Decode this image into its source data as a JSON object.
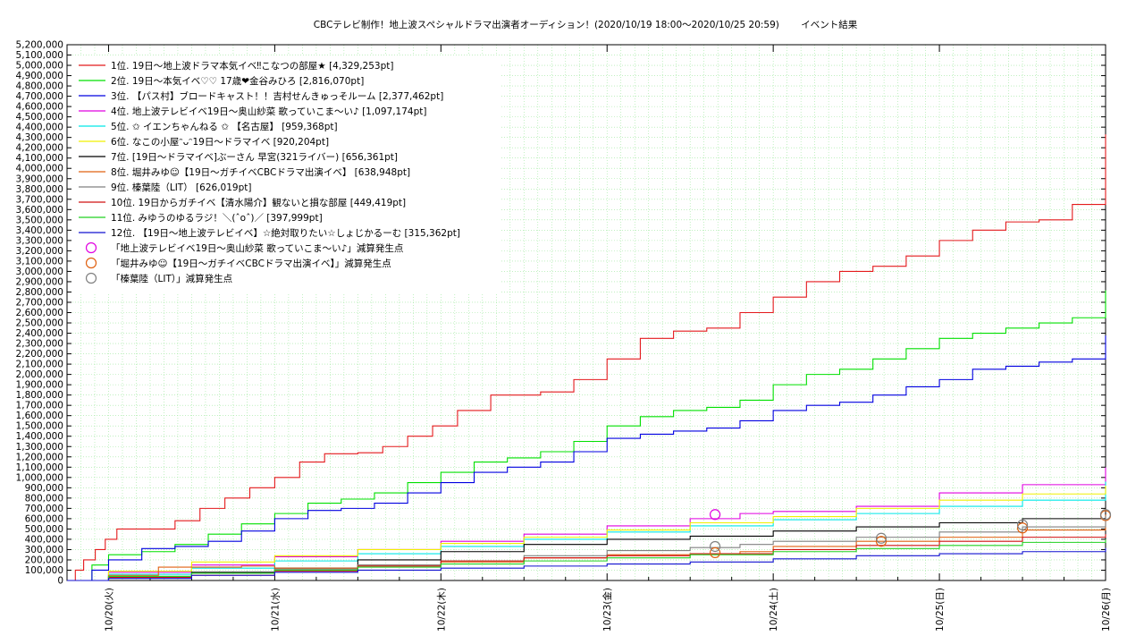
{
  "chart_data": {
    "type": "line",
    "title": "CBCテレビ制作！地上波スペシャルドラマ出演者オーディション！(2020/10/19 18:00〜2020/10/25 20:59)　　 イベント結果",
    "xlabel": "",
    "ylabel": "",
    "ylim": [
      0,
      5200000
    ],
    "y_tick_step": 100000,
    "x_ticks": [
      "10/20(火)",
      "10/21(水)",
      "10/22(木)",
      "10/23(金)",
      "10/24(土)",
      "10/25(日)",
      "10/26(月)"
    ],
    "x_unit": "days since 2020/10/20 00:00 (Mon 10/19 18:00 = -0.25)",
    "grid": true,
    "legend_position": "top-left",
    "series": [
      {
        "name": "1位. 19日〜地上波ドラマ本気イベ‼こなつの部屋★ [4,329,253pt]",
        "color": "#e41a1c",
        "points": [
          [
            -0.25,
            0
          ],
          [
            -0.2,
            100000
          ],
          [
            -0.15,
            200000
          ],
          [
            -0.08,
            300000
          ],
          [
            -0.02,
            400000
          ],
          [
            0.05,
            500000
          ],
          [
            0.25,
            500000
          ],
          [
            0.4,
            580000
          ],
          [
            0.55,
            700000
          ],
          [
            0.7,
            800000
          ],
          [
            0.85,
            900000
          ],
          [
            1.0,
            1000000
          ],
          [
            1.15,
            1150000
          ],
          [
            1.3,
            1230000
          ],
          [
            1.5,
            1240000
          ],
          [
            1.65,
            1300000
          ],
          [
            1.8,
            1400000
          ],
          [
            1.95,
            1500000
          ],
          [
            2.1,
            1650000
          ],
          [
            2.3,
            1800000
          ],
          [
            2.6,
            1830000
          ],
          [
            2.8,
            1950000
          ],
          [
            3.0,
            2150000
          ],
          [
            3.2,
            2350000
          ],
          [
            3.4,
            2420000
          ],
          [
            3.6,
            2450000
          ],
          [
            3.8,
            2600000
          ],
          [
            4.0,
            2750000
          ],
          [
            4.2,
            2900000
          ],
          [
            4.4,
            3000000
          ],
          [
            4.6,
            3050000
          ],
          [
            4.8,
            3150000
          ],
          [
            5.0,
            3300000
          ],
          [
            5.2,
            3400000
          ],
          [
            5.4,
            3480000
          ],
          [
            5.6,
            3500000
          ],
          [
            5.8,
            3650000
          ],
          [
            6.0,
            3800000
          ],
          [
            6.15,
            3850000
          ],
          [
            6.25,
            4000000
          ],
          [
            6.28,
            4329253
          ],
          [
            6.4,
            4329253
          ]
        ]
      },
      {
        "name": "2位. 19日〜本気イベ♡♡ 17歳❤金谷みひろ [2,816,070pt]",
        "color": "#00e000",
        "points": [
          [
            -0.25,
            0
          ],
          [
            -0.1,
            150000
          ],
          [
            0.0,
            250000
          ],
          [
            0.2,
            280000
          ],
          [
            0.4,
            350000
          ],
          [
            0.6,
            450000
          ],
          [
            0.8,
            550000
          ],
          [
            1.0,
            650000
          ],
          [
            1.2,
            750000
          ],
          [
            1.4,
            790000
          ],
          [
            1.6,
            850000
          ],
          [
            1.8,
            950000
          ],
          [
            2.0,
            1050000
          ],
          [
            2.2,
            1150000
          ],
          [
            2.4,
            1190000
          ],
          [
            2.6,
            1250000
          ],
          [
            2.8,
            1350000
          ],
          [
            3.0,
            1500000
          ],
          [
            3.2,
            1590000
          ],
          [
            3.4,
            1650000
          ],
          [
            3.6,
            1680000
          ],
          [
            3.8,
            1750000
          ],
          [
            4.0,
            1900000
          ],
          [
            4.2,
            2000000
          ],
          [
            4.4,
            2050000
          ],
          [
            4.6,
            2150000
          ],
          [
            4.8,
            2250000
          ],
          [
            5.0,
            2350000
          ],
          [
            5.2,
            2400000
          ],
          [
            5.4,
            2450000
          ],
          [
            5.6,
            2500000
          ],
          [
            5.8,
            2550000
          ],
          [
            6.0,
            2600000
          ],
          [
            6.15,
            2700000
          ],
          [
            6.25,
            2816070
          ],
          [
            6.4,
            2816070
          ]
        ]
      },
      {
        "name": "3位. 【パス村】ブロードキャスト！！吉村せんきゅっそルーム [2,377,462pt]",
        "color": "#0000e0",
        "points": [
          [
            -0.25,
            0
          ],
          [
            -0.1,
            100000
          ],
          [
            0.0,
            200000
          ],
          [
            0.2,
            310000
          ],
          [
            0.4,
            330000
          ],
          [
            0.6,
            380000
          ],
          [
            0.8,
            480000
          ],
          [
            1.0,
            600000
          ],
          [
            1.2,
            680000
          ],
          [
            1.4,
            700000
          ],
          [
            1.6,
            750000
          ],
          [
            1.8,
            850000
          ],
          [
            2.0,
            950000
          ],
          [
            2.2,
            1050000
          ],
          [
            2.4,
            1100000
          ],
          [
            2.6,
            1150000
          ],
          [
            2.8,
            1250000
          ],
          [
            3.0,
            1380000
          ],
          [
            3.2,
            1420000
          ],
          [
            3.4,
            1450000
          ],
          [
            3.6,
            1480000
          ],
          [
            3.8,
            1550000
          ],
          [
            4.0,
            1650000
          ],
          [
            4.2,
            1700000
          ],
          [
            4.4,
            1730000
          ],
          [
            4.6,
            1800000
          ],
          [
            4.8,
            1880000
          ],
          [
            5.0,
            1950000
          ],
          [
            5.2,
            2050000
          ],
          [
            5.4,
            2080000
          ],
          [
            5.6,
            2120000
          ],
          [
            5.8,
            2150000
          ],
          [
            6.0,
            2250000
          ],
          [
            6.2,
            2377462
          ],
          [
            6.4,
            2377462
          ]
        ]
      },
      {
        "name": "4位. 地上波テレビイベ19日〜奥山紗菜 歌っていこま〜い♪ [1,097,174pt]",
        "color": "#e000e0",
        "points": [
          [
            -0.25,
            0
          ],
          [
            0.0,
            80000
          ],
          [
            0.5,
            150000
          ],
          [
            1.0,
            230000
          ],
          [
            1.5,
            300000
          ],
          [
            2.0,
            380000
          ],
          [
            2.5,
            450000
          ],
          [
            3.0,
            530000
          ],
          [
            3.5,
            600000
          ],
          [
            3.8,
            650000
          ],
          [
            4.0,
            670000
          ],
          [
            4.5,
            720000
          ],
          [
            5.0,
            850000
          ],
          [
            5.5,
            930000
          ],
          [
            6.0,
            1000000
          ],
          [
            6.2,
            1097174
          ],
          [
            6.4,
            1097174
          ]
        ]
      },
      {
        "name": "5位. ✩ イエンちゃんねる ✩ 【名古屋】 [959,368pt]",
        "color": "#00e8e8",
        "points": [
          [
            -0.25,
            0
          ],
          [
            0.0,
            60000
          ],
          [
            0.5,
            120000
          ],
          [
            1.0,
            190000
          ],
          [
            1.5,
            260000
          ],
          [
            2.0,
            330000
          ],
          [
            2.5,
            400000
          ],
          [
            3.0,
            470000
          ],
          [
            3.5,
            530000
          ],
          [
            4.0,
            590000
          ],
          [
            4.5,
            650000
          ],
          [
            5.0,
            720000
          ],
          [
            5.5,
            780000
          ],
          [
            6.0,
            830000
          ],
          [
            6.2,
            959368
          ],
          [
            6.4,
            959368
          ]
        ]
      },
      {
        "name": "6位. なこの小屋ᵔᴗᵔ19日〜ドラマイベ [920,204pt]",
        "color": "#f0f000",
        "points": [
          [
            -0.25,
            0
          ],
          [
            0.0,
            90000
          ],
          [
            0.5,
            180000
          ],
          [
            1.0,
            240000
          ],
          [
            1.5,
            300000
          ],
          [
            2.0,
            360000
          ],
          [
            2.5,
            420000
          ],
          [
            3.0,
            490000
          ],
          [
            3.5,
            560000
          ],
          [
            4.0,
            620000
          ],
          [
            4.5,
            700000
          ],
          [
            5.0,
            780000
          ],
          [
            5.5,
            840000
          ],
          [
            6.0,
            880000
          ],
          [
            6.2,
            920204
          ],
          [
            6.4,
            920204
          ]
        ]
      },
      {
        "name": "7位. [19日〜ドラマイベ]ぶーさん 早宮(321ライバー) [656,361pt]",
        "color": "#000000",
        "points": [
          [
            -0.25,
            0
          ],
          [
            0.0,
            40000
          ],
          [
            0.5,
            80000
          ],
          [
            1.0,
            120000
          ],
          [
            1.5,
            200000
          ],
          [
            2.0,
            280000
          ],
          [
            2.5,
            350000
          ],
          [
            3.0,
            400000
          ],
          [
            3.5,
            430000
          ],
          [
            4.0,
            480000
          ],
          [
            4.5,
            520000
          ],
          [
            5.0,
            560000
          ],
          [
            5.5,
            600000
          ],
          [
            6.0,
            640000
          ],
          [
            6.4,
            656361
          ]
        ]
      },
      {
        "name": "8位. 堀井みゆ☺【19日〜ガチイベCBCドラマ出演イベ】 [638,948pt]",
        "color": "#e06010",
        "points": [
          [
            -0.25,
            0
          ],
          [
            0.0,
            50000
          ],
          [
            0.3,
            130000
          ],
          [
            0.8,
            140000
          ],
          [
            1.0,
            120000
          ],
          [
            1.5,
            150000
          ],
          [
            2.0,
            180000
          ],
          [
            2.5,
            220000
          ],
          [
            3.0,
            250000
          ],
          [
            3.5,
            260000
          ],
          [
            3.8,
            280000
          ],
          [
            4.0,
            330000
          ],
          [
            4.5,
            380000
          ],
          [
            5.0,
            420000
          ],
          [
            5.5,
            490000
          ],
          [
            6.0,
            600000
          ],
          [
            6.4,
            638948
          ]
        ]
      },
      {
        "name": "9位. 榛葉陸（LIT） [626,019pt]",
        "color": "#808080",
        "points": [
          [
            -0.25,
            0
          ],
          [
            0.0,
            30000
          ],
          [
            0.5,
            70000
          ],
          [
            1.0,
            110000
          ],
          [
            1.5,
            150000
          ],
          [
            2.0,
            190000
          ],
          [
            2.5,
            240000
          ],
          [
            3.0,
            290000
          ],
          [
            3.5,
            320000
          ],
          [
            3.8,
            350000
          ],
          [
            4.0,
            380000
          ],
          [
            4.5,
            420000
          ],
          [
            5.0,
            470000
          ],
          [
            5.5,
            520000
          ],
          [
            6.0,
            600000
          ],
          [
            6.4,
            626019
          ]
        ]
      },
      {
        "name": "10位. 19日からガチイベ【清水陽介】観ないと損な部屋 [449,419pt]",
        "color": "#d01010",
        "points": [
          [
            -0.25,
            0
          ],
          [
            0.0,
            30000
          ],
          [
            0.5,
            50000
          ],
          [
            1.0,
            90000
          ],
          [
            1.5,
            140000
          ],
          [
            2.0,
            190000
          ],
          [
            2.5,
            220000
          ],
          [
            3.0,
            240000
          ],
          [
            3.5,
            260000
          ],
          [
            4.0,
            300000
          ],
          [
            4.5,
            340000
          ],
          [
            5.0,
            380000
          ],
          [
            5.5,
            420000
          ],
          [
            6.0,
            440000
          ],
          [
            6.4,
            449419
          ]
        ]
      },
      {
        "name": "11位. みゆうのゆるラジ！＼(ˆoˆ)／ [397,999pt]",
        "color": "#20d020",
        "points": [
          [
            -0.25,
            0
          ],
          [
            0.0,
            40000
          ],
          [
            0.5,
            70000
          ],
          [
            1.0,
            100000
          ],
          [
            1.5,
            130000
          ],
          [
            2.0,
            160000
          ],
          [
            2.5,
            190000
          ],
          [
            3.0,
            220000
          ],
          [
            3.5,
            250000
          ],
          [
            4.0,
            280000
          ],
          [
            4.5,
            310000
          ],
          [
            5.0,
            340000
          ],
          [
            5.5,
            370000
          ],
          [
            6.0,
            390000
          ],
          [
            6.4,
            397999
          ]
        ]
      },
      {
        "name": "12位. 【19日〜地上波テレビイベ】☆絶対取りたい☆しょじかるーむ [315,362pt]",
        "color": "#1010d0",
        "points": [
          [
            -0.25,
            0
          ],
          [
            0.0,
            20000
          ],
          [
            0.5,
            50000
          ],
          [
            1.0,
            80000
          ],
          [
            1.5,
            100000
          ],
          [
            2.0,
            120000
          ],
          [
            2.5,
            140000
          ],
          [
            3.0,
            160000
          ],
          [
            3.5,
            180000
          ],
          [
            4.0,
            210000
          ],
          [
            4.5,
            240000
          ],
          [
            5.0,
            260000
          ],
          [
            5.5,
            280000
          ],
          [
            6.0,
            300000
          ],
          [
            6.4,
            315362
          ]
        ]
      }
    ],
    "markers": [
      {
        "name": "「地上波テレビイベ19日〜奥山紗菜 歌っていこま〜い♪」減算発生点",
        "color": "#e000e0",
        "points": [
          [
            3.65,
            640000
          ]
        ]
      },
      {
        "name": "「堀井みゆ☺【19日〜ガチイベCBCドラマ出演イベ】」減算発生点",
        "color": "#e06010",
        "points": [
          [
            3.65,
            270000
          ],
          [
            4.65,
            380000
          ],
          [
            5.5,
            510000
          ],
          [
            6.15,
            630000
          ]
        ]
      },
      {
        "name": "「榛葉陸（LIT）」減算発生点",
        "color": "#808080",
        "points": [
          [
            3.65,
            330000
          ],
          [
            4.65,
            410000
          ],
          [
            5.5,
            540000
          ],
          [
            6.15,
            640000
          ]
        ]
      }
    ]
  }
}
